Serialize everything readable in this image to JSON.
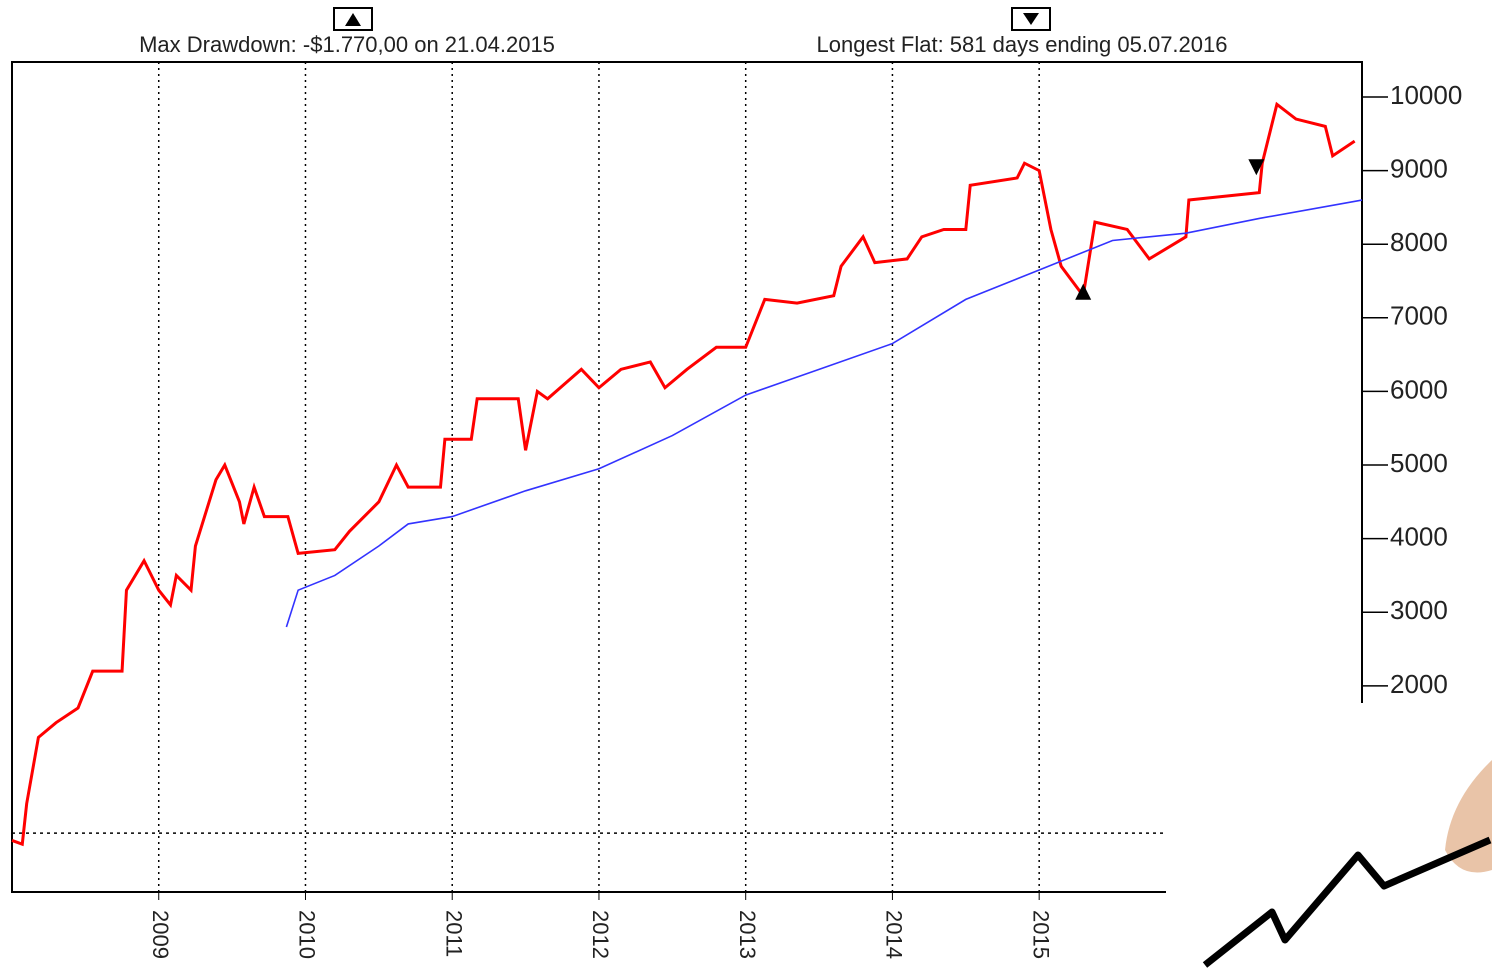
{
  "chart_data": {
    "type": "line",
    "annotations": [
      "Max Drawdown: -$1.770,00 on 21.04.2015",
      "Longest Flat: 581 days ending 05.07.2016"
    ],
    "xlim": [
      2008.0,
      2017.2
    ],
    "xticks": [
      2009,
      2010,
      2011,
      2012,
      2013,
      2014,
      2015
    ],
    "ylim": [
      -800,
      10475
    ],
    "yticks": [
      2000,
      3000,
      4000,
      5000,
      6000,
      7000,
      8000,
      9000,
      10000
    ],
    "baseline": 0,
    "grid": true,
    "series": [
      {
        "color": "#ff0000",
        "x": [
          2008.0,
          2008.07,
          2008.1,
          2008.18,
          2008.3,
          2008.45,
          2008.55,
          2008.75,
          2008.78,
          2008.9,
          2009.0,
          2009.08,
          2009.12,
          2009.22,
          2009.25,
          2009.39,
          2009.45,
          2009.55,
          2009.58,
          2009.65,
          2009.72,
          2009.88,
          2009.95,
          2010.2,
          2010.3,
          2010.5,
          2010.62,
          2010.7,
          2010.92,
          2010.95,
          2011.13,
          2011.17,
          2011.45,
          2011.5,
          2011.58,
          2011.65,
          2011.88,
          2012.0,
          2012.15,
          2012.35,
          2012.45,
          2012.6,
          2012.8,
          2013.0,
          2013.13,
          2013.35,
          2013.6,
          2013.65,
          2013.8,
          2013.88,
          2014.1,
          2014.2,
          2014.35,
          2014.5,
          2014.53,
          2014.85,
          2014.9,
          2015.0,
          2015.08,
          2015.15,
          2015.3,
          2015.38,
          2015.6,
          2015.75,
          2016.0,
          2016.02,
          2016.5,
          2016.52,
          2016.62,
          2016.75,
          2016.95,
          2017.0,
          2017.15
        ],
        "values": [
          -100,
          -150,
          400,
          1300,
          1500,
          1700,
          2200,
          2200,
          3300,
          3700,
          3300,
          3100,
          3500,
          3300,
          3900,
          4800,
          5000,
          4500,
          4200,
          4700,
          4300,
          4300,
          3800,
          3850,
          4100,
          4500,
          5000,
          4700,
          4700,
          5350,
          5350,
          5900,
          5900,
          5200,
          6000,
          5900,
          6300,
          6050,
          6300,
          6400,
          6050,
          6300,
          6600,
          6600,
          7250,
          7200,
          7300,
          7700,
          8100,
          7750,
          7800,
          8100,
          8200,
          8200,
          8800,
          8900,
          9100,
          9000,
          8200,
          7700,
          7300,
          8300,
          8200,
          7800,
          8100,
          8600,
          8700,
          9100,
          9900,
          9700,
          9600,
          9200,
          9400
        ]
      },
      {
        "color": "#3333ff",
        "x": [
          2009.87,
          2009.95,
          2010.2,
          2010.5,
          2010.7,
          2011.0,
          2011.5,
          2012.0,
          2012.5,
          2013.0,
          2013.5,
          2014.0,
          2014.5,
          2015.0,
          2015.5,
          2016.0,
          2016.5,
          2017.2
        ],
        "values": [
          2800,
          3300,
          3500,
          3900,
          4200,
          4300,
          4650,
          4950,
          5400,
          5950,
          6300,
          6650,
          7250,
          7650,
          8050,
          8150,
          8350,
          8600
        ]
      }
    ],
    "markers": [
      {
        "x": 2015.3,
        "y": 7300,
        "shape": "up"
      },
      {
        "x": 2016.48,
        "y": 9100,
        "shape": "down"
      }
    ]
  }
}
